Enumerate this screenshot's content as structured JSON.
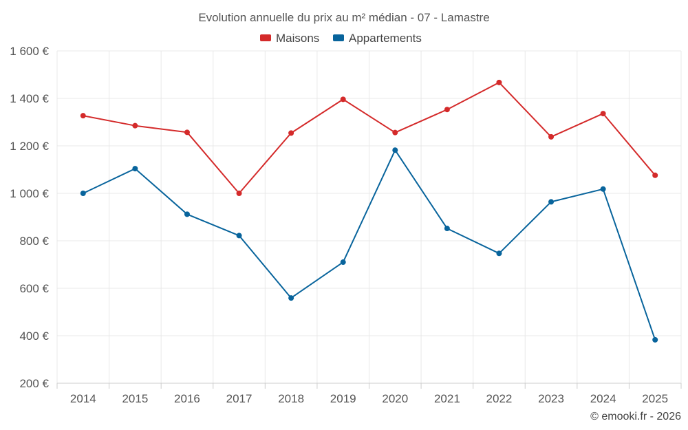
{
  "chart_data": {
    "type": "line",
    "title": "Evolution annuelle du prix au m² médian - 07 - Lamastre",
    "categories": [
      "2014",
      "2015",
      "2016",
      "2017",
      "2018",
      "2019",
      "2020",
      "2021",
      "2022",
      "2023",
      "2024",
      "2025"
    ],
    "series": [
      {
        "name": "Maisons",
        "color": "#d42a2a",
        "values": [
          1327,
          1285,
          1257,
          1000,
          1254,
          1396,
          1256,
          1353,
          1467,
          1238,
          1336,
          1076
        ]
      },
      {
        "name": "Appartements",
        "color": "#08649c",
        "values": [
          1000,
          1104,
          912,
          822,
          559,
          710,
          1182,
          852,
          747,
          964,
          1018,
          383
        ]
      }
    ],
    "yticks": [
      200,
      400,
      600,
      800,
      1000,
      1200,
      1400,
      1600
    ],
    "ytick_labels": [
      "200 €",
      "400 €",
      "600 €",
      "800 €",
      "1 000 €",
      "1 200 €",
      "1 400 €",
      "1 600 €"
    ],
    "ylim": [
      200,
      1600
    ],
    "xlabel": "",
    "ylabel": "",
    "legend_position": "top-center",
    "grid": true,
    "credit": "© emooki.fr - 2026"
  }
}
